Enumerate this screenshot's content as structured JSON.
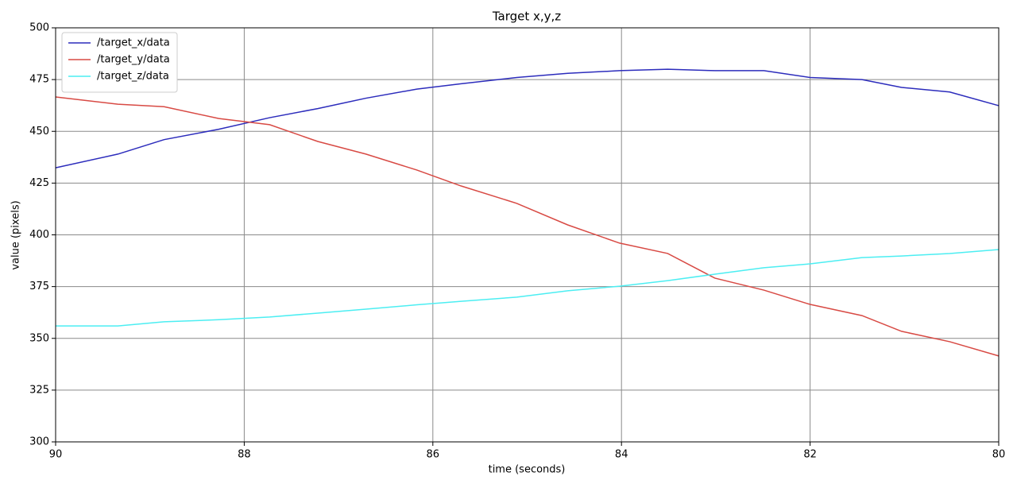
{
  "chart_data": {
    "type": "line",
    "title": "Target x,y,z",
    "x_label": "time (seconds)",
    "y_label": "value (pixels)",
    "x": [
      90,
      89.34,
      88.85,
      88.27,
      87.73,
      87.22,
      86.71,
      86.17,
      85.7,
      85.11,
      84.57,
      84.02,
      83.51,
      83.01,
      82.49,
      82.0,
      81.45,
      81.03,
      80.52,
      80
    ],
    "series": [
      {
        "name": "/target_x/data",
        "color": "#2c2cbc",
        "values": [
          432.4,
          439,
          446,
          451,
          456.6,
          461,
          466,
          470.4,
          473,
          476,
          478,
          479.3,
          480,
          479.3,
          479.3,
          476,
          475,
          471.2,
          469,
          462.4
        ]
      },
      {
        "name": "/target_y/data",
        "color": "#d84a44",
        "values": [
          466.6,
          463.1,
          461.9,
          456.2,
          453.2,
          445.1,
          439,
          431.3,
          423.6,
          415.2,
          404.8,
          396,
          391,
          379.1,
          373.3,
          366.4,
          361,
          353.4,
          348.4,
          341.5
        ]
      },
      {
        "name": "/target_z/data",
        "color": "#4ceef2",
        "values": [
          356,
          356,
          358,
          359,
          360.3,
          362.2,
          364.1,
          366.2,
          367.9,
          369.9,
          373,
          375.2,
          377.9,
          381,
          384.1,
          386,
          389,
          389.8,
          391,
          392.9
        ]
      }
    ],
    "xlim": [
      90,
      80
    ],
    "xticks": [
      90,
      88,
      86,
      84,
      82,
      80
    ],
    "ylim": [
      300,
      500
    ],
    "yticks": [
      300,
      325,
      350,
      375,
      400,
      425,
      450,
      475,
      500
    ],
    "grid": true,
    "legend": "upper left"
  }
}
